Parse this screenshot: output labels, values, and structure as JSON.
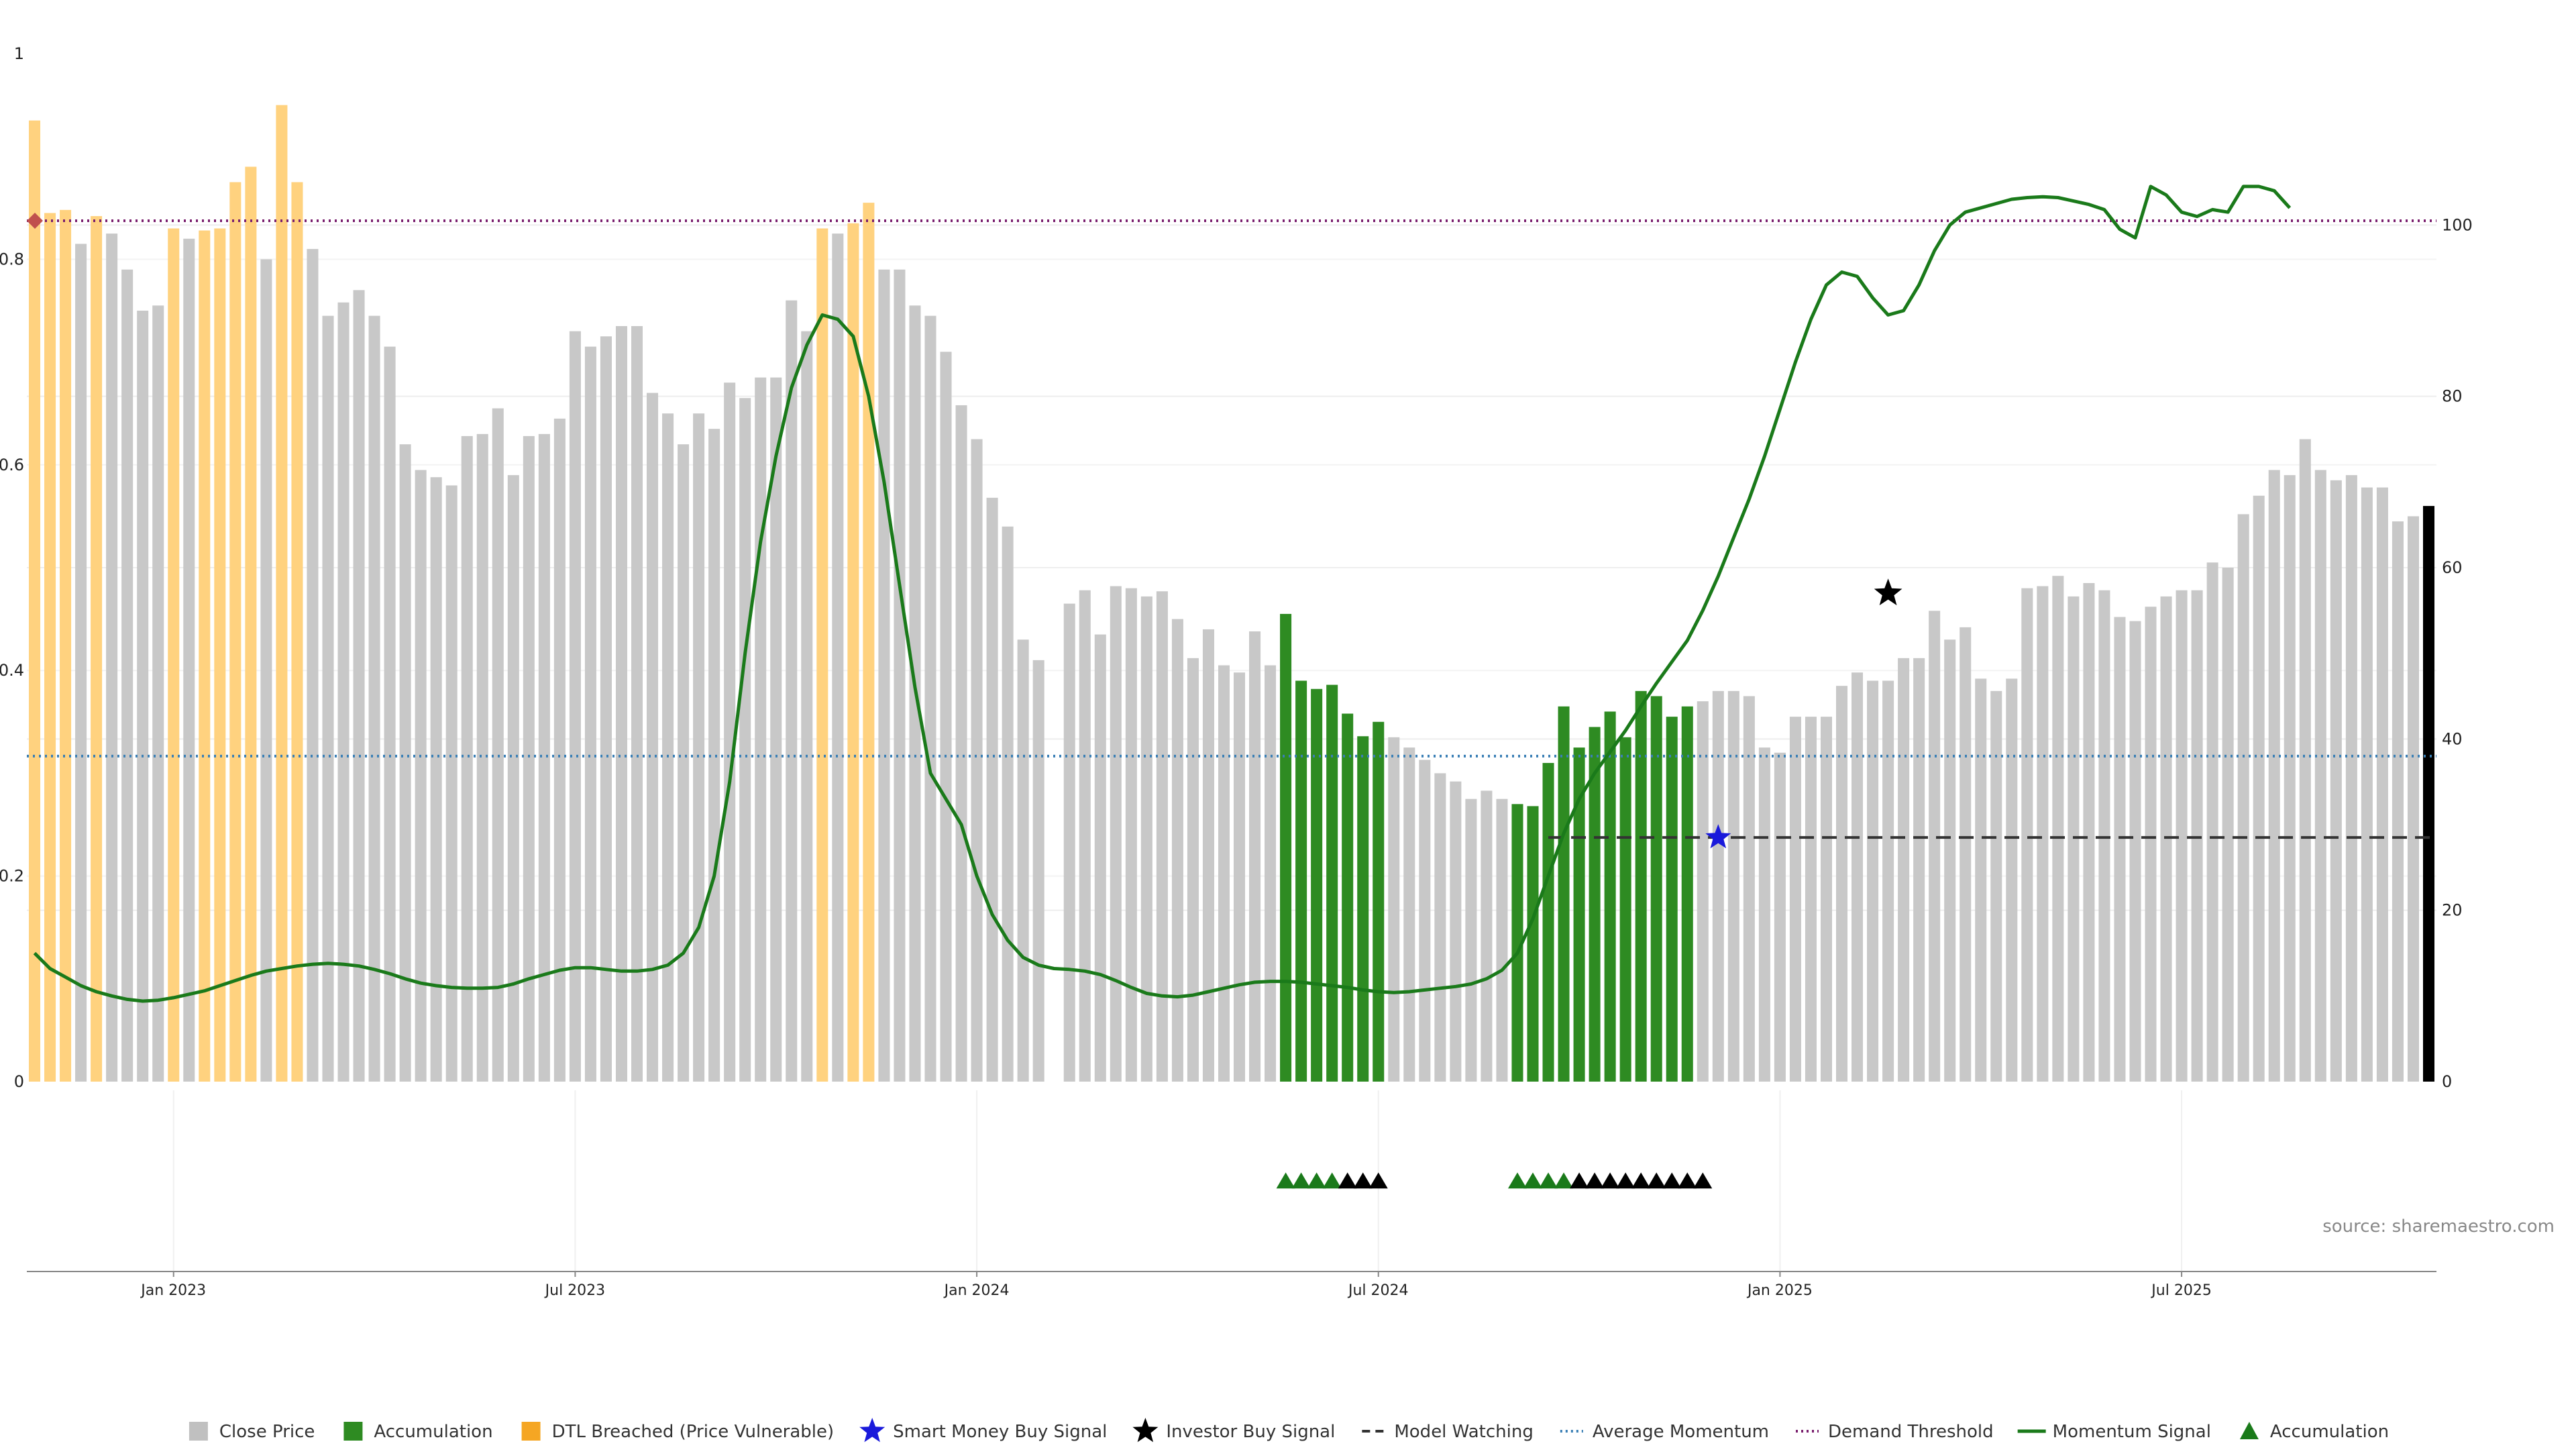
{
  "source_note": "source: sharemaestro.com",
  "colors": {
    "close_price": "#c8c8c8",
    "accumulation": "#2e8b22",
    "dtl_breached": "#ffd27f",
    "momentum": "#1a7a1a",
    "avg_momentum": "#3a7fb5",
    "demand_threshold": "#7a1f6e",
    "model_watching": "#333333",
    "smart_money": "#1a1adb",
    "investor": "#000000",
    "demand_marker": "#c0504d"
  },
  "legend": [
    {
      "label": "Close Price",
      "icon": "square",
      "color": "#c0c0c0"
    },
    {
      "label": "Accumulation",
      "icon": "square",
      "color": "#2e8b22"
    },
    {
      "label": "DTL Breached (Price Vulnerable)",
      "icon": "square",
      "color": "#f5a623"
    },
    {
      "label": "Smart Money Buy Signal",
      "icon": "star",
      "color": "#1a1adb"
    },
    {
      "label": "Investor Buy Signal",
      "icon": "star",
      "color": "#000000"
    },
    {
      "label": "Model Watching",
      "icon": "dash",
      "color": "#333333"
    },
    {
      "label": "Average Momentum",
      "icon": "dot",
      "color": "#3a7fb5"
    },
    {
      "label": "Demand Threshold",
      "icon": "dot",
      "color": "#7a1f6e"
    },
    {
      "label": "Momentum Signal",
      "icon": "line",
      "color": "#1a7a1a"
    },
    {
      "label": "Accumulation",
      "icon": "triangle",
      "color": "#1a7a1a"
    }
  ],
  "chart_data": {
    "type": "bar",
    "title": "",
    "y_left": {
      "range": [
        0,
        1.0
      ],
      "ticks": [
        "0",
        "0.2",
        "0.4",
        "0.6",
        "0.8",
        "1"
      ]
    },
    "y_right": {
      "range": [
        0,
        120
      ],
      "ticks": [
        "0",
        "20",
        "40",
        "60",
        "80",
        "100"
      ]
    },
    "x_ticks": [
      "Jan 2023",
      "Jul 2023",
      "Jan 2024",
      "Jul 2024",
      "Jan 2025",
      "Jul 2025"
    ],
    "close_price": [
      0.935,
      0.845,
      0.848,
      0.815,
      0.842,
      0.825,
      0.79,
      0.75,
      0.755,
      0.83,
      0.82,
      0.828,
      0.83,
      0.875,
      0.89,
      0.8,
      0.95,
      0.875,
      0.81,
      0.745,
      0.758,
      0.77,
      0.745,
      0.715,
      0.62,
      0.595,
      0.588,
      0.58,
      0.628,
      0.63,
      0.655,
      0.59,
      0.628,
      0.63,
      0.645,
      0.73,
      0.715,
      0.725,
      0.735,
      0.735,
      0.67,
      0.65,
      0.62,
      0.65,
      0.635,
      0.68,
      0.665,
      0.685,
      0.685,
      0.76,
      0.73,
      0.83,
      0.825,
      0.835,
      0.855,
      0.79,
      0.79,
      0.755,
      0.745,
      0.71,
      0.658,
      0.625,
      0.568,
      0.54,
      0.43,
      0.41,
      0,
      0.465,
      0.478,
      0.435,
      0.482,
      0.48,
      0.472,
      0.477,
      0.45,
      0.412,
      0.44,
      0.405,
      0.398,
      0.438,
      0.405,
      0.455,
      0.39,
      0.382,
      0.386,
      0.358,
      0.336,
      0.35,
      0.335,
      0.325,
      0.313,
      0.3,
      0.292,
      0.275,
      0.283,
      0.275,
      0.27,
      0.268,
      0.31,
      0.365,
      0.325,
      0.345,
      0.36,
      0.335,
      0.38,
      0.375,
      0.355,
      0.365,
      0.37,
      0.38,
      0.38,
      0.375,
      0.325,
      0.32,
      0.355,
      0.355,
      0.355,
      0.385,
      0.398,
      0.39,
      0.39,
      0.412,
      0.412,
      0.458,
      0.43,
      0.442,
      0.392,
      0.38,
      0.392,
      0.48,
      0.482,
      0.492,
      0.472,
      0.485,
      0.478,
      0.452,
      0.448,
      0.462,
      0.472,
      0.478,
      0.478,
      0.505,
      0.5,
      0.552,
      0.57,
      0.595,
      0.59,
      0.625,
      0.595,
      0.585,
      0.59,
      0.578,
      0.578,
      0.545,
      0.55,
      0.56
    ],
    "bar_category": [
      "d",
      "d",
      "d",
      "c",
      "d",
      "c",
      "c",
      "c",
      "c",
      "d",
      "c",
      "d",
      "d",
      "d",
      "d",
      "c",
      "d",
      "d",
      "c",
      "c",
      "c",
      "c",
      "c",
      "c",
      "c",
      "c",
      "c",
      "c",
      "c",
      "c",
      "c",
      "c",
      "c",
      "c",
      "c",
      "c",
      "c",
      "c",
      "c",
      "c",
      "c",
      "c",
      "c",
      "c",
      "c",
      "c",
      "c",
      "c",
      "c",
      "c",
      "c",
      "d",
      "c",
      "d",
      "d",
      "c",
      "c",
      "c",
      "c",
      "c",
      "c",
      "c",
      "c",
      "c",
      "c",
      "c",
      "c",
      "c",
      "c",
      "c",
      "c",
      "c",
      "c",
      "c",
      "c",
      "c",
      "c",
      "c",
      "c",
      "c",
      "c",
      "a",
      "a",
      "a",
      "a",
      "a",
      "a",
      "a",
      "c",
      "c",
      "c",
      "c",
      "c",
      "c",
      "c",
      "c",
      "a",
      "a",
      "a",
      "a",
      "a",
      "a",
      "a",
      "a",
      "a",
      "a",
      "a",
      "a",
      "c",
      "c",
      "c",
      "c",
      "c",
      "c",
      "c",
      "c",
      "c",
      "c",
      "c",
      "c",
      "c",
      "c",
      "c",
      "c",
      "c",
      "c",
      "c",
      "c",
      "c",
      "c",
      "c",
      "c",
      "c",
      "c",
      "c",
      "c",
      "c",
      "c",
      "c",
      "c",
      "c",
      "c",
      "c",
      "c",
      "c",
      "c",
      "c",
      "c",
      "c",
      "c",
      "c",
      "c",
      "c",
      "c",
      "c"
    ],
    "momentum_signal": [
      15,
      13.2,
      12.2,
      11.2,
      10.5,
      10,
      9.6,
      9.4,
      9.5,
      9.8,
      10.2,
      10.6,
      11.2,
      11.8,
      12.4,
      12.9,
      13.2,
      13.5,
      13.7,
      13.8,
      13.7,
      13.5,
      13.1,
      12.6,
      12,
      11.5,
      11.2,
      11,
      10.9,
      10.9,
      11,
      11.4,
      12,
      12.5,
      13,
      13.3,
      13.3,
      13.1,
      12.9,
      12.9,
      13.1,
      13.6,
      15,
      18,
      24,
      35,
      50,
      63,
      73,
      81,
      86,
      89.5,
      89,
      87,
      80,
      70,
      58,
      46,
      36,
      33,
      30,
      24,
      19.5,
      16.5,
      14.5,
      13.6,
      13.2,
      13.1,
      12.9,
      12.5,
      11.8,
      11,
      10.3,
      10,
      9.9,
      10.1,
      10.5,
      10.9,
      11.3,
      11.6,
      11.7,
      11.7,
      11.6,
      11.4,
      11.2,
      11,
      10.7,
      10.5,
      10.4,
      10.5,
      10.7,
      10.9,
      11.1,
      11.4,
      12,
      13,
      15,
      19,
      24,
      29,
      33,
      36,
      38.5,
      41,
      43.8,
      46.5,
      49,
      51.5,
      55,
      59,
      63.5,
      68,
      73,
      78.5,
      84,
      89,
      93,
      94.5,
      94,
      91.5,
      89.5,
      90,
      93,
      97,
      100,
      101.5,
      102,
      102.5,
      103,
      103.2,
      103.3,
      103.2,
      102.8,
      102.4,
      101.8,
      99.5,
      98.5,
      104.5,
      103.5,
      101.5,
      101,
      101.8,
      101.5,
      104.5,
      104.5,
      104,
      102
    ]
  }
}
